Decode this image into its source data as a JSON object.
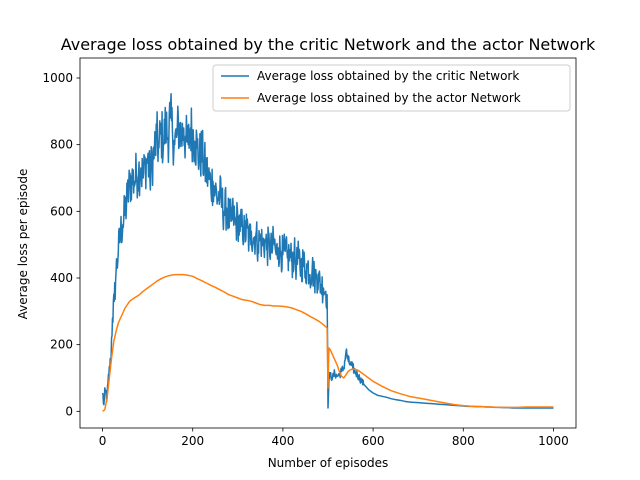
{
  "chart_data": {
    "type": "line",
    "title": "Average loss obtained by the critic Network and the actor Network",
    "xlabel": "Number of episodes",
    "ylabel": "Average loss per episode",
    "xlim": [
      -50,
      1050
    ],
    "ylim": [
      -50,
      1060
    ],
    "xticks": [
      0,
      200,
      400,
      600,
      800,
      1000
    ],
    "yticks": [
      0,
      200,
      400,
      600,
      800,
      1000
    ],
    "grid": false,
    "legend_position": "top-right",
    "series": [
      {
        "name": "Average loss obtained by the critic Network",
        "color": "#1f77b4",
        "noise": "high",
        "x": [
          0,
          3,
          6,
          10,
          14,
          18,
          22,
          26,
          30,
          35,
          40,
          45,
          50,
          55,
          60,
          65,
          70,
          75,
          80,
          85,
          90,
          95,
          100,
          105,
          110,
          115,
          120,
          125,
          130,
          135,
          140,
          145,
          150,
          155,
          160,
          165,
          170,
          175,
          180,
          185,
          190,
          195,
          200,
          205,
          210,
          215,
          220,
          225,
          230,
          235,
          240,
          245,
          250,
          255,
          260,
          265,
          270,
          275,
          280,
          285,
          290,
          295,
          300,
          305,
          310,
          315,
          320,
          325,
          330,
          335,
          340,
          345,
          350,
          355,
          360,
          365,
          370,
          375,
          380,
          385,
          390,
          395,
          400,
          405,
          410,
          415,
          420,
          425,
          430,
          435,
          440,
          445,
          450,
          455,
          460,
          465,
          470,
          475,
          480,
          485,
          490,
          495,
          498,
          500,
          502,
          505,
          510,
          515,
          520,
          525,
          530,
          535,
          540,
          545,
          550,
          555,
          560,
          565,
          570,
          575,
          580,
          590,
          600,
          610,
          620,
          630,
          640,
          650,
          660,
          670,
          680,
          690,
          700,
          710,
          720,
          730,
          740,
          750,
          760,
          770,
          780,
          790,
          800,
          810,
          820,
          830,
          840,
          850,
          860,
          870,
          880,
          890,
          900,
          910,
          920,
          930,
          940,
          950,
          960,
          970,
          980,
          990,
          1000
        ],
        "y": [
          55,
          20,
          60,
          40,
          110,
          150,
          280,
          330,
          420,
          480,
          540,
          560,
          600,
          640,
          680,
          700,
          690,
          710,
          720,
          730,
          700,
          740,
          760,
          700,
          750,
          780,
          820,
          790,
          840,
          800,
          860,
          820,
          880,
          840,
          800,
          830,
          860,
          820,
          850,
          810,
          800,
          850,
          830,
          810,
          790,
          760,
          780,
          740,
          720,
          700,
          680,
          690,
          660,
          640,
          650,
          620,
          600,
          610,
          580,
          570,
          590,
          560,
          580,
          540,
          560,
          530,
          550,
          510,
          540,
          520,
          530,
          500,
          520,
          500,
          510,
          490,
          500,
          480,
          510,
          470,
          490,
          480,
          470,
          480,
          460,
          470,
          450,
          470,
          440,
          460,
          430,
          450,
          420,
          440,
          410,
          430,
          400,
          410,
          390,
          380,
          370,
          360,
          350,
          10,
          95,
          110,
          100,
          115,
          105,
          110,
          120,
          130,
          180,
          150,
          140,
          130,
          120,
          110,
          100,
          90,
          80,
          65,
          55,
          48,
          45,
          42,
          38,
          35,
          33,
          30,
          28,
          27,
          26,
          25,
          24,
          23,
          22,
          21,
          20,
          19,
          18,
          17,
          16,
          15,
          15,
          14,
          14,
          13,
          13,
          12,
          12,
          11,
          11,
          10,
          10,
          10,
          10,
          10,
          10,
          10,
          10,
          10,
          10
        ]
      },
      {
        "name": "Average loss obtained by the actor Network",
        "color": "#ff7f0e",
        "noise": "low",
        "x": [
          0,
          5,
          10,
          15,
          20,
          25,
          30,
          35,
          40,
          50,
          60,
          70,
          80,
          90,
          100,
          110,
          120,
          130,
          140,
          150,
          160,
          170,
          180,
          190,
          200,
          210,
          220,
          230,
          240,
          250,
          260,
          270,
          280,
          290,
          300,
          310,
          320,
          330,
          340,
          350,
          360,
          370,
          380,
          390,
          400,
          410,
          420,
          430,
          440,
          450,
          460,
          470,
          480,
          490,
          498,
          500,
          502,
          505,
          510,
          515,
          520,
          525,
          530,
          535,
          540,
          545,
          550,
          555,
          560,
          565,
          570,
          575,
          580,
          590,
          600,
          620,
          640,
          660,
          680,
          700,
          720,
          740,
          760,
          780,
          800,
          820,
          840,
          860,
          880,
          900,
          920,
          940,
          960,
          980,
          1000
        ],
        "y": [
          0,
          5,
          40,
          100,
          160,
          210,
          240,
          265,
          280,
          310,
          330,
          340,
          348,
          360,
          370,
          380,
          390,
          398,
          404,
          408,
          410,
          410,
          410,
          408,
          405,
          398,
          392,
          385,
          378,
          372,
          365,
          358,
          350,
          345,
          340,
          335,
          333,
          330,
          325,
          320,
          318,
          318,
          316,
          316,
          315,
          313,
          310,
          305,
          300,
          293,
          285,
          278,
          270,
          260,
          250,
          70,
          190,
          185,
          170,
          155,
          140,
          120,
          105,
          100,
          110,
          120,
          125,
          127,
          126,
          124,
          120,
          115,
          110,
          100,
          90,
          75,
          62,
          53,
          45,
          40,
          35,
          30,
          25,
          20,
          17,
          15,
          14,
          13,
          12,
          12,
          12,
          13,
          13,
          13,
          13
        ]
      }
    ]
  }
}
